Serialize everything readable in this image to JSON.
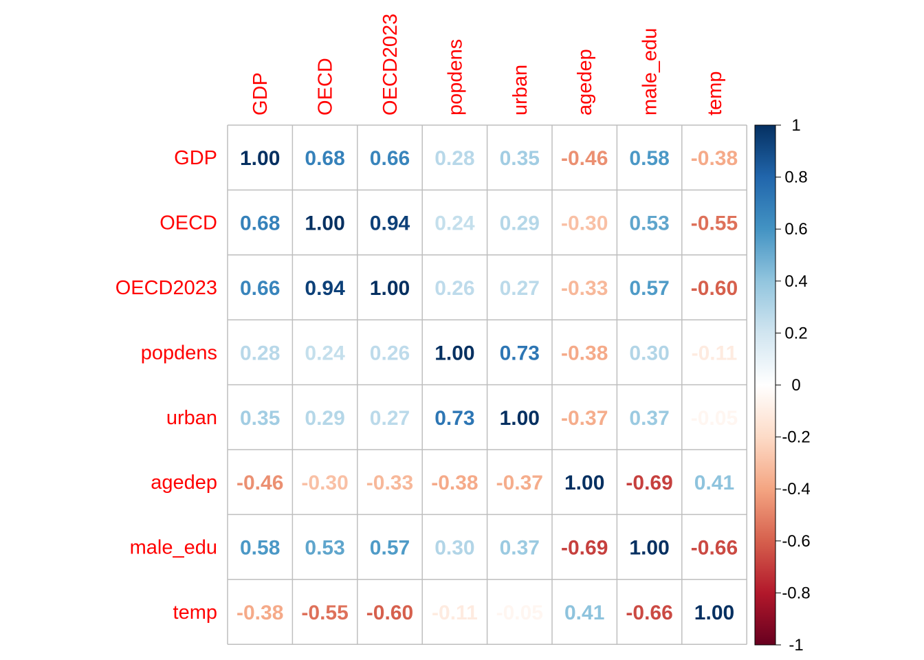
{
  "chart_data": {
    "type": "heatmap",
    "variables": [
      "GDP",
      "OECD",
      "OECD2023",
      "popdens",
      "urban",
      "agedep",
      "male_edu",
      "temp"
    ],
    "matrix": [
      [
        1.0,
        0.68,
        0.66,
        0.28,
        0.35,
        -0.46,
        0.58,
        -0.38
      ],
      [
        0.68,
        1.0,
        0.94,
        0.24,
        0.29,
        -0.3,
        0.53,
        -0.55
      ],
      [
        0.66,
        0.94,
        1.0,
        0.26,
        0.27,
        -0.33,
        0.57,
        -0.6
      ],
      [
        0.28,
        0.24,
        0.26,
        1.0,
        0.73,
        -0.38,
        0.3,
        -0.11
      ],
      [
        0.35,
        0.29,
        0.27,
        0.73,
        1.0,
        -0.37,
        0.37,
        -0.05
      ],
      [
        -0.46,
        -0.3,
        -0.33,
        -0.38,
        -0.37,
        1.0,
        -0.69,
        0.41
      ],
      [
        0.58,
        0.53,
        0.57,
        0.3,
        0.37,
        -0.69,
        1.0,
        -0.66
      ],
      [
        -0.38,
        -0.55,
        -0.6,
        -0.11,
        -0.05,
        0.41,
        -0.66,
        1.0
      ]
    ],
    "colorbar": {
      "range": [
        -1,
        1
      ],
      "ticks": [
        "1",
        "0.8",
        "0.6",
        "0.4",
        "0.2",
        "0",
        "-0.2",
        "-0.4",
        "-0.6",
        "-0.8",
        "-1"
      ],
      "tick_values": [
        1,
        0.8,
        0.6,
        0.4,
        0.2,
        0,
        -0.2,
        -0.4,
        -0.6,
        -0.8,
        -1
      ],
      "colors": [
        "#67001F",
        "#B2182B",
        "#D6604D",
        "#F4A582",
        "#FDDBC7",
        "#FFFFFF",
        "#D1E5F0",
        "#92C5DE",
        "#4393C3",
        "#2166AC",
        "#053061"
      ]
    },
    "label_color": "#FF0000",
    "grid_color": "#BEBEBE",
    "grid": true,
    "legend_placement": "right"
  }
}
